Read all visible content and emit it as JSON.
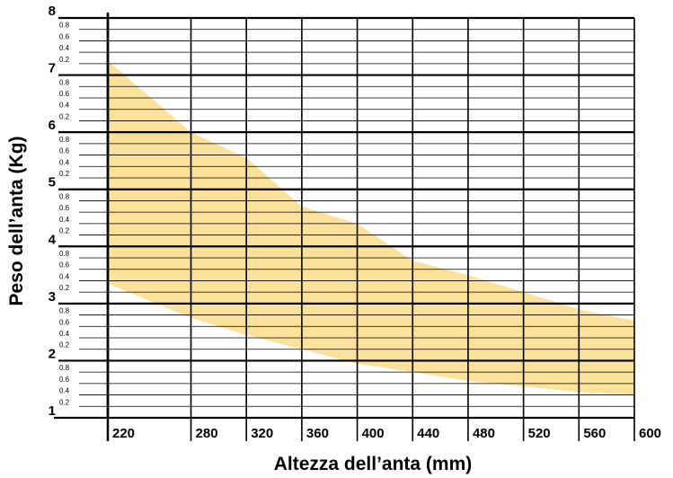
{
  "chart_data": {
    "type": "area",
    "title": "",
    "xlabel": "Altezza dell’anta (mm)",
    "ylabel": "Peso dell’anta (Kg)",
    "x_ticks": [
      "220",
      "280",
      "320",
      "360",
      "400",
      "440",
      "480",
      "520",
      "560",
      "600"
    ],
    "y_major_ticks": [
      "1",
      "2",
      "3",
      "4",
      "5",
      "6",
      "7",
      "8"
    ],
    "y_minor_tick_labels": [
      "0.2",
      "0.4",
      "0.6",
      "0.8"
    ],
    "xlim": [
      220,
      600
    ],
    "ylim": [
      1,
      8
    ],
    "grid": true,
    "fill_color": "#fbe19a",
    "band": {
      "x": [
        220,
        280,
        320,
        360,
        400,
        440,
        480,
        520,
        560,
        600
      ],
      "upper": [
        7.25,
        6.0,
        5.55,
        4.7,
        4.4,
        3.75,
        3.5,
        3.2,
        2.9,
        2.7
      ],
      "lower": [
        3.35,
        2.75,
        2.45,
        2.2,
        1.95,
        1.8,
        1.65,
        1.55,
        1.45,
        1.4
      ]
    }
  }
}
